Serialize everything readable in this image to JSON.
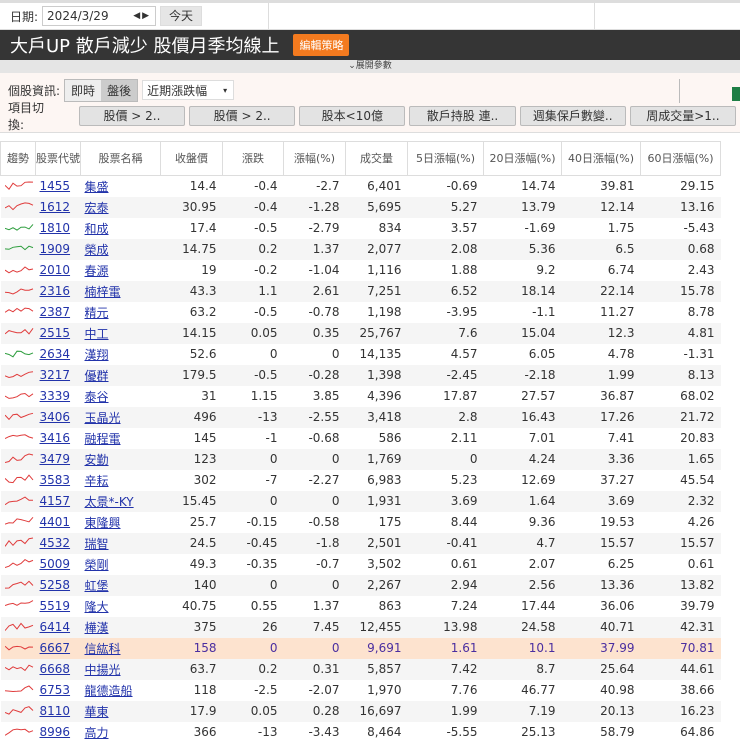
{
  "toolbar": {
    "date_label": "日期:",
    "date_value": "2024/3/29",
    "today_label": "今天"
  },
  "header": {
    "title": "大戶UP 散戶減少 股價月季均線上",
    "edit_label": "編輯策略",
    "expand_label": "⌄展開參數"
  },
  "info": {
    "label": "個股資訊:",
    "realtime": "即時",
    "after": "盤後",
    "select_value": "近期漲跌幅"
  },
  "switch": {
    "label": "項目切換:",
    "buttons": [
      "股價 > 2..",
      "股價 > 2..",
      "股本<10億",
      "散戶持股 連..",
      "週集保戶數變..",
      "周成交量>1.."
    ]
  },
  "colors": {
    "up": "#e03c3c",
    "down": "#2e9e3e",
    "highlight": "#fde3cf",
    "header_bg": "#353535",
    "accent": "#f37a1f"
  },
  "table": {
    "headers": [
      "趨勢",
      "股票代號",
      "股票名稱",
      "收盤價",
      "漲跌",
      "漲幅(%)",
      "成交量",
      "5日漲幅(%)",
      "20日漲幅(%)",
      "40日漲幅(%)",
      "60日漲幅(%)"
    ],
    "rows": [
      [
        "red",
        "1455",
        "集盛",
        "14.4",
        "-0.4",
        "-2.7",
        "6,401",
        "-0.69",
        "14.74",
        "39.81",
        "29.15"
      ],
      [
        "red",
        "1612",
        "宏泰",
        "30.95",
        "-0.4",
        "-1.28",
        "5,695",
        "5.27",
        "13.79",
        "12.14",
        "13.16"
      ],
      [
        "green",
        "1810",
        "和成",
        "17.4",
        "-0.5",
        "-2.79",
        "834",
        "3.57",
        "-1.69",
        "1.75",
        "-5.43"
      ],
      [
        "green",
        "1909",
        "榮成",
        "14.75",
        "0.2",
        "1.37",
        "2,077",
        "2.08",
        "5.36",
        "6.5",
        "0.68"
      ],
      [
        "red",
        "2010",
        "春源",
        "19",
        "-0.2",
        "-1.04",
        "1,116",
        "1.88",
        "9.2",
        "6.74",
        "2.43"
      ],
      [
        "red",
        "2316",
        "楠梓電",
        "43.3",
        "1.1",
        "2.61",
        "7,251",
        "6.52",
        "18.14",
        "22.14",
        "15.78"
      ],
      [
        "red",
        "2387",
        "精元",
        "63.2",
        "-0.5",
        "-0.78",
        "1,198",
        "-3.95",
        "-1.1",
        "11.27",
        "8.78"
      ],
      [
        "red",
        "2515",
        "中工",
        "14.15",
        "0.05",
        "0.35",
        "25,767",
        "7.6",
        "15.04",
        "12.3",
        "4.81"
      ],
      [
        "green",
        "2634",
        "漢翔",
        "52.6",
        "0",
        "0",
        "14,135",
        "4.57",
        "6.05",
        "4.78",
        "-1.31"
      ],
      [
        "red",
        "3217",
        "優群",
        "179.5",
        "-0.5",
        "-0.28",
        "1,398",
        "-2.45",
        "-2.18",
        "1.99",
        "8.13"
      ],
      [
        "red",
        "3339",
        "泰谷",
        "31",
        "1.15",
        "3.85",
        "4,396",
        "17.87",
        "27.57",
        "36.87",
        "68.02"
      ],
      [
        "red",
        "3406",
        "玉晶光",
        "496",
        "-13",
        "-2.55",
        "3,418",
        "2.8",
        "16.43",
        "17.26",
        "21.72"
      ],
      [
        "red",
        "3416",
        "融程電",
        "145",
        "-1",
        "-0.68",
        "586",
        "2.11",
        "7.01",
        "7.41",
        "20.83"
      ],
      [
        "red",
        "3479",
        "安勤",
        "123",
        "0",
        "0",
        "1,769",
        "0",
        "4.24",
        "3.36",
        "1.65"
      ],
      [
        "red",
        "3583",
        "辛耘",
        "302",
        "-7",
        "-2.27",
        "6,983",
        "5.23",
        "12.69",
        "37.27",
        "45.54"
      ],
      [
        "red",
        "4157",
        "太景*-KY",
        "15.45",
        "0",
        "0",
        "1,931",
        "3.69",
        "1.64",
        "3.69",
        "2.32"
      ],
      [
        "red",
        "4401",
        "東隆興",
        "25.7",
        "-0.15",
        "-0.58",
        "175",
        "8.44",
        "9.36",
        "19.53",
        "4.26"
      ],
      [
        "red",
        "4532",
        "瑞智",
        "24.5",
        "-0.45",
        "-1.8",
        "2,501",
        "-0.41",
        "4.7",
        "15.57",
        "15.57"
      ],
      [
        "red",
        "5009",
        "榮剛",
        "49.3",
        "-0.35",
        "-0.7",
        "3,502",
        "0.61",
        "2.07",
        "6.25",
        "0.61"
      ],
      [
        "red",
        "5258",
        "虹堡",
        "140",
        "0",
        "0",
        "2,267",
        "2.94",
        "2.56",
        "13.36",
        "13.82"
      ],
      [
        "red",
        "5519",
        "隆大",
        "40.75",
        "0.55",
        "1.37",
        "863",
        "7.24",
        "17.44",
        "36.06",
        "39.79"
      ],
      [
        "red",
        "6414",
        "樺漢",
        "375",
        "26",
        "7.45",
        "12,455",
        "13.98",
        "24.58",
        "40.71",
        "42.31"
      ],
      [
        "red",
        "6667",
        "信紘科",
        "158",
        "0",
        "0",
        "9,691",
        "1.61",
        "10.1",
        "37.99",
        "70.81"
      ],
      [
        "red",
        "6668",
        "中揚光",
        "63.7",
        "0.2",
        "0.31",
        "5,857",
        "7.42",
        "8.7",
        "25.64",
        "44.61"
      ],
      [
        "red",
        "6753",
        "龍德造船",
        "118",
        "-2.5",
        "-2.07",
        "1,970",
        "7.76",
        "46.77",
        "40.98",
        "38.66"
      ],
      [
        "red",
        "8110",
        "華東",
        "17.9",
        "0.05",
        "0.28",
        "16,697",
        "1.99",
        "7.19",
        "20.13",
        "16.23"
      ],
      [
        "red",
        "8996",
        "高力",
        "366",
        "-13",
        "-3.43",
        "8,464",
        "-5.55",
        "25.13",
        "58.79",
        "64.86"
      ]
    ],
    "highlight_code": "6667"
  }
}
